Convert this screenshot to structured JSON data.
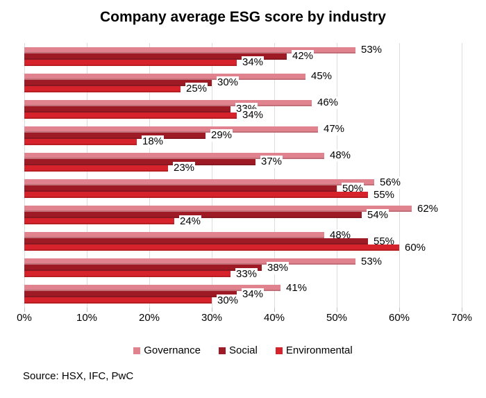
{
  "title": "Company average ESG score by industry",
  "source_note": "Source: HSX, IFC, PwC",
  "colors": {
    "governance": "#e1838f",
    "social": "#9e1b26",
    "environmental": "#d6232b",
    "gridline": "#dcdcdc",
    "tick": "#bfbfbf",
    "text": "#000000"
  },
  "legend": [
    {
      "label": "Governance",
      "color": "#e1838f"
    },
    {
      "label": "Social",
      "color": "#9e1b26"
    },
    {
      "label": "Environmental",
      "color": "#d6232b"
    }
  ],
  "chart_data": {
    "type": "bar",
    "orientation": "horizontal",
    "title": "Company average ESG score by industry",
    "xlabel": "",
    "ylabel": "",
    "xlim": [
      0,
      70
    ],
    "x_tick_labels": [
      "0%",
      "10%",
      "20%",
      "30%",
      "40%",
      "50%",
      "60%",
      "70%"
    ],
    "grid": true,
    "legend_position": "bottom",
    "n_groups": 10,
    "value_label_suffix": "%",
    "series": [
      {
        "name": "Governance",
        "color": "#e1838f",
        "values": [
          53,
          45,
          46,
          47,
          48,
          56,
          62,
          48,
          53,
          41
        ]
      },
      {
        "name": "Social",
        "color": "#9e1b26",
        "values": [
          42,
          30,
          33,
          29,
          37,
          50,
          54,
          55,
          38,
          34
        ]
      },
      {
        "name": "Environmental",
        "color": "#d6232b",
        "values": [
          34,
          25,
          34,
          18,
          23,
          55,
          24,
          60,
          33,
          30
        ]
      }
    ]
  }
}
